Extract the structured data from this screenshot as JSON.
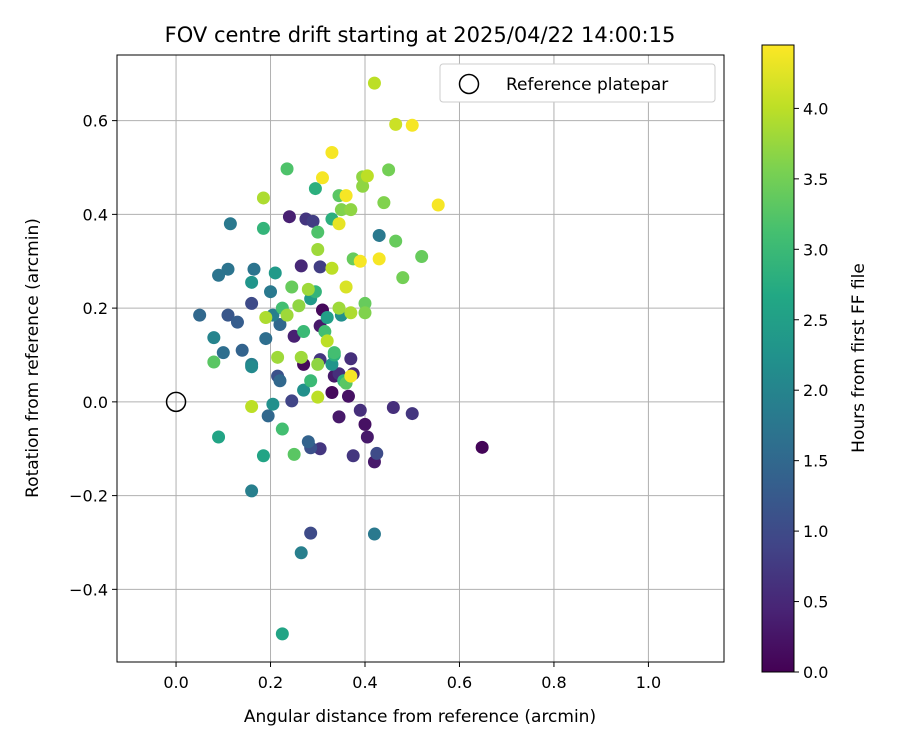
{
  "chart_data": {
    "type": "scatter",
    "title": "FOV centre drift starting at 2025/04/22 14:00:15",
    "xlabel": "Angular distance from reference (arcmin)",
    "ylabel": "Rotation from reference (arcmin)",
    "xlim": [
      -0.125,
      1.16
    ],
    "ylim": [
      -0.555,
      0.74
    ],
    "xticks": [
      "0.0",
      "0.2",
      "0.4",
      "0.6",
      "0.8",
      "1.0"
    ],
    "xtick_values": [
      0.0,
      0.2,
      0.4,
      0.6,
      0.8,
      1.0
    ],
    "yticks": [
      "−0.4",
      "−0.2",
      "0.0",
      "0.2",
      "0.4",
      "0.6"
    ],
    "ytick_values": [
      -0.4,
      -0.2,
      0.0,
      0.2,
      0.4,
      0.6
    ],
    "grid": true,
    "legend": {
      "position": "top-right",
      "entries": [
        "Reference platepar"
      ]
    },
    "reference_point": {
      "x": 0.0,
      "y": 0.0
    },
    "colorbar": {
      "label": "Hours from first FF file",
      "range": [
        0.0,
        4.45
      ],
      "ticks": [
        "0.0",
        "0.5",
        "1.0",
        "1.5",
        "2.0",
        "2.5",
        "3.0",
        "3.5",
        "4.0"
      ],
      "tick_values": [
        0.0,
        0.5,
        1.0,
        1.5,
        2.0,
        2.5,
        3.0,
        3.5,
        4.0
      ],
      "colormap": "viridis"
    },
    "points": [
      {
        "x": 0.648,
        "y": -0.097,
        "c": 0.05
      },
      {
        "x": 0.31,
        "y": 0.196,
        "c": 0.1
      },
      {
        "x": 0.33,
        "y": 0.02,
        "c": 0.1
      },
      {
        "x": 0.27,
        "y": 0.08,
        "c": 0.1
      },
      {
        "x": 0.365,
        "y": 0.012,
        "c": 0.2
      },
      {
        "x": 0.4,
        "y": -0.048,
        "c": 0.2
      },
      {
        "x": 0.405,
        "y": -0.075,
        "c": 0.3
      },
      {
        "x": 0.42,
        "y": -0.128,
        "c": 0.3
      },
      {
        "x": 0.345,
        "y": -0.032,
        "c": 0.3
      },
      {
        "x": 0.335,
        "y": 0.055,
        "c": 0.3
      },
      {
        "x": 0.305,
        "y": 0.162,
        "c": 0.3
      },
      {
        "x": 0.25,
        "y": 0.14,
        "c": 0.4
      },
      {
        "x": 0.24,
        "y": 0.395,
        "c": 0.4
      },
      {
        "x": 0.265,
        "y": 0.29,
        "c": 0.5
      },
      {
        "x": 0.375,
        "y": 0.06,
        "c": 0.5
      },
      {
        "x": 0.37,
        "y": 0.092,
        "c": 0.6
      },
      {
        "x": 0.39,
        "y": -0.018,
        "c": 0.6
      },
      {
        "x": 0.46,
        "y": -0.012,
        "c": 0.6
      },
      {
        "x": 0.5,
        "y": -0.025,
        "c": 0.7
      },
      {
        "x": 0.305,
        "y": -0.1,
        "c": 0.7
      },
      {
        "x": 0.375,
        "y": -0.115,
        "c": 0.7
      },
      {
        "x": 0.305,
        "y": 0.09,
        "c": 0.7
      },
      {
        "x": 0.345,
        "y": 0.06,
        "c": 0.6
      },
      {
        "x": 0.275,
        "y": 0.39,
        "c": 0.7
      },
      {
        "x": 0.29,
        "y": 0.385,
        "c": 0.8
      },
      {
        "x": 0.305,
        "y": 0.288,
        "c": 0.8
      },
      {
        "x": 0.285,
        "y": -0.28,
        "c": 1.0
      },
      {
        "x": 0.425,
        "y": -0.11,
        "c": 1.0
      },
      {
        "x": 0.245,
        "y": 0.002,
        "c": 0.9
      },
      {
        "x": 0.285,
        "y": -0.098,
        "c": 1.1
      },
      {
        "x": 0.215,
        "y": 0.055,
        "c": 1.1
      },
      {
        "x": 0.16,
        "y": 0.21,
        "c": 1.0
      },
      {
        "x": 0.28,
        "y": -0.085,
        "c": 1.4
      },
      {
        "x": 0.11,
        "y": 0.185,
        "c": 1.2
      },
      {
        "x": 0.05,
        "y": 0.185,
        "c": 1.5
      },
      {
        "x": 0.13,
        "y": 0.17,
        "c": 1.3
      },
      {
        "x": 0.14,
        "y": 0.11,
        "c": 1.4
      },
      {
        "x": 0.1,
        "y": 0.105,
        "c": 1.6
      },
      {
        "x": 0.22,
        "y": 0.045,
        "c": 1.5
      },
      {
        "x": 0.195,
        "y": -0.03,
        "c": 1.5
      },
      {
        "x": 0.22,
        "y": 0.165,
        "c": 1.5
      },
      {
        "x": 0.19,
        "y": 0.135,
        "c": 1.6
      },
      {
        "x": 0.115,
        "y": 0.38,
        "c": 1.8
      },
      {
        "x": 0.11,
        "y": 0.283,
        "c": 1.7
      },
      {
        "x": 0.09,
        "y": 0.27,
        "c": 1.7
      },
      {
        "x": 0.165,
        "y": 0.283,
        "c": 1.7
      },
      {
        "x": 0.43,
        "y": 0.355,
        "c": 1.8
      },
      {
        "x": 0.42,
        "y": -0.282,
        "c": 1.8
      },
      {
        "x": 0.265,
        "y": -0.322,
        "c": 1.9
      },
      {
        "x": 0.16,
        "y": -0.19,
        "c": 1.9
      },
      {
        "x": 0.2,
        "y": 0.235,
        "c": 1.8
      },
      {
        "x": 0.205,
        "y": 0.185,
        "c": 1.9
      },
      {
        "x": 0.16,
        "y": 0.08,
        "c": 1.9
      },
      {
        "x": 0.16,
        "y": 0.075,
        "c": 2.1
      },
      {
        "x": 0.08,
        "y": 0.137,
        "c": 2.0
      },
      {
        "x": 0.205,
        "y": -0.005,
        "c": 2.2
      },
      {
        "x": 0.27,
        "y": 0.025,
        "c": 2.2
      },
      {
        "x": 0.35,
        "y": 0.185,
        "c": 2.2
      },
      {
        "x": 0.33,
        "y": 0.08,
        "c": 2.3
      },
      {
        "x": 0.16,
        "y": 0.255,
        "c": 2.3
      },
      {
        "x": 0.21,
        "y": 0.275,
        "c": 2.4
      },
      {
        "x": 0.185,
        "y": -0.115,
        "c": 2.6
      },
      {
        "x": 0.09,
        "y": -0.075,
        "c": 2.6
      },
      {
        "x": 0.225,
        "y": -0.495,
        "c": 2.6
      },
      {
        "x": 0.32,
        "y": 0.18,
        "c": 2.5
      },
      {
        "x": 0.285,
        "y": 0.22,
        "c": 2.4
      },
      {
        "x": 0.295,
        "y": 0.455,
        "c": 2.8
      },
      {
        "x": 0.185,
        "y": 0.37,
        "c": 2.9
      },
      {
        "x": 0.355,
        "y": 0.045,
        "c": 2.9
      },
      {
        "x": 0.335,
        "y": 0.1,
        "c": 2.8
      },
      {
        "x": 0.33,
        "y": 0.39,
        "c": 2.8
      },
      {
        "x": 0.295,
        "y": 0.235,
        "c": 2.9
      },
      {
        "x": 0.27,
        "y": 0.15,
        "c": 3.0
      },
      {
        "x": 0.285,
        "y": 0.045,
        "c": 3.0
      },
      {
        "x": 0.225,
        "y": -0.058,
        "c": 3.1
      },
      {
        "x": 0.25,
        "y": -0.112,
        "c": 3.3
      },
      {
        "x": 0.08,
        "y": 0.085,
        "c": 3.3
      },
      {
        "x": 0.225,
        "y": 0.2,
        "c": 3.1
      },
      {
        "x": 0.235,
        "y": 0.497,
        "c": 3.2
      },
      {
        "x": 0.3,
        "y": 0.362,
        "c": 3.2
      },
      {
        "x": 0.315,
        "y": 0.15,
        "c": 3.1
      },
      {
        "x": 0.335,
        "y": 0.105,
        "c": 3.1
      },
      {
        "x": 0.36,
        "y": 0.04,
        "c": 3.3
      },
      {
        "x": 0.345,
        "y": 0.44,
        "c": 3.3
      },
      {
        "x": 0.375,
        "y": 0.305,
        "c": 3.4
      },
      {
        "x": 0.4,
        "y": 0.21,
        "c": 3.4
      },
      {
        "x": 0.245,
        "y": 0.245,
        "c": 3.4
      },
      {
        "x": 0.465,
        "y": 0.343,
        "c": 3.4
      },
      {
        "x": 0.52,
        "y": 0.31,
        "c": 3.4
      },
      {
        "x": 0.48,
        "y": 0.265,
        "c": 3.5
      },
      {
        "x": 0.45,
        "y": 0.495,
        "c": 3.5
      },
      {
        "x": 0.44,
        "y": 0.425,
        "c": 3.6
      },
      {
        "x": 0.4,
        "y": 0.19,
        "c": 3.6
      },
      {
        "x": 0.35,
        "y": 0.41,
        "c": 3.6
      },
      {
        "x": 0.37,
        "y": 0.41,
        "c": 3.7
      },
      {
        "x": 0.395,
        "y": 0.48,
        "c": 3.7
      },
      {
        "x": 0.395,
        "y": 0.46,
        "c": 3.7
      },
      {
        "x": 0.3,
        "y": 0.08,
        "c": 3.7
      },
      {
        "x": 0.26,
        "y": 0.205,
        "c": 3.7
      },
      {
        "x": 0.235,
        "y": 0.185,
        "c": 3.8
      },
      {
        "x": 0.215,
        "y": 0.095,
        "c": 3.8
      },
      {
        "x": 0.265,
        "y": 0.095,
        "c": 3.8
      },
      {
        "x": 0.28,
        "y": 0.24,
        "c": 3.8
      },
      {
        "x": 0.3,
        "y": 0.325,
        "c": 3.8
      },
      {
        "x": 0.345,
        "y": 0.2,
        "c": 3.8
      },
      {
        "x": 0.37,
        "y": 0.19,
        "c": 3.9
      },
      {
        "x": 0.185,
        "y": 0.435,
        "c": 3.9
      },
      {
        "x": 0.19,
        "y": 0.18,
        "c": 3.9
      },
      {
        "x": 0.16,
        "y": -0.01,
        "c": 4.0
      },
      {
        "x": 0.3,
        "y": 0.01,
        "c": 4.0
      },
      {
        "x": 0.32,
        "y": 0.13,
        "c": 4.0
      },
      {
        "x": 0.33,
        "y": 0.285,
        "c": 4.0
      },
      {
        "x": 0.405,
        "y": 0.482,
        "c": 4.0
      },
      {
        "x": 0.42,
        "y": 0.68,
        "c": 4.0
      },
      {
        "x": 0.465,
        "y": 0.592,
        "c": 4.1
      },
      {
        "x": 0.36,
        "y": 0.245,
        "c": 4.2
      },
      {
        "x": 0.345,
        "y": 0.38,
        "c": 4.3
      },
      {
        "x": 0.33,
        "y": 0.532,
        "c": 4.4
      },
      {
        "x": 0.31,
        "y": 0.478,
        "c": 4.4
      },
      {
        "x": 0.36,
        "y": 0.44,
        "c": 4.4
      },
      {
        "x": 0.39,
        "y": 0.3,
        "c": 4.4
      },
      {
        "x": 0.43,
        "y": 0.305,
        "c": 4.4
      },
      {
        "x": 0.5,
        "y": 0.59,
        "c": 4.4
      },
      {
        "x": 0.555,
        "y": 0.42,
        "c": 4.4
      },
      {
        "x": 0.37,
        "y": 0.055,
        "c": 4.4
      }
    ]
  }
}
